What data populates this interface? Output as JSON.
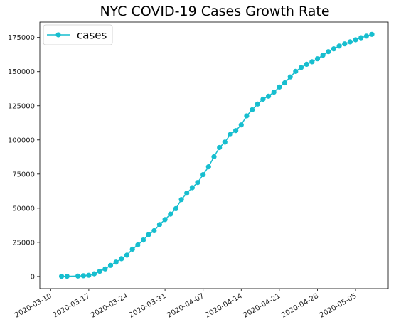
{
  "chart_data": {
    "type": "line",
    "title": "NYC COVID-19 Cases Growth Rate",
    "xlabel": "",
    "ylabel": "",
    "x_start": "2020-03-10",
    "series": [
      {
        "name": "cases",
        "color": "#17becf",
        "marker": "circle",
        "points": [
          [
            "2020-03-12",
            100
          ],
          [
            "2020-03-13",
            150
          ],
          [
            "2020-03-15",
            300
          ],
          [
            "2020-03-16",
            500
          ],
          [
            "2020-03-17",
            900
          ],
          [
            "2020-03-18",
            2000
          ],
          [
            "2020-03-19",
            3800
          ],
          [
            "2020-03-20",
            5500
          ],
          [
            "2020-03-21",
            8100
          ],
          [
            "2020-03-22",
            10500
          ],
          [
            "2020-03-23",
            13000
          ],
          [
            "2020-03-24",
            15600
          ],
          [
            "2020-03-25",
            20000
          ],
          [
            "2020-03-26",
            23100
          ],
          [
            "2020-03-27",
            26700
          ],
          [
            "2020-03-28",
            30700
          ],
          [
            "2020-03-29",
            33500
          ],
          [
            "2020-03-30",
            38000
          ],
          [
            "2020-03-31",
            41700
          ],
          [
            "2020-04-01",
            45700
          ],
          [
            "2020-04-02",
            49700
          ],
          [
            "2020-04-03",
            56300
          ],
          [
            "2020-04-04",
            61000
          ],
          [
            "2020-04-05",
            65000
          ],
          [
            "2020-04-06",
            68800
          ],
          [
            "2020-04-07",
            74600
          ],
          [
            "2020-04-08",
            80300
          ],
          [
            "2020-04-09",
            87700
          ],
          [
            "2020-04-10",
            94400
          ],
          [
            "2020-04-11",
            98400
          ],
          [
            "2020-04-12",
            104000
          ],
          [
            "2020-04-13",
            106800
          ],
          [
            "2020-04-14",
            111000
          ],
          [
            "2020-04-15",
            117600
          ],
          [
            "2020-04-16",
            122000
          ],
          [
            "2020-04-17",
            126300
          ],
          [
            "2020-04-18",
            129800
          ],
          [
            "2020-04-19",
            132000
          ],
          [
            "2020-04-20",
            135000
          ],
          [
            "2020-04-21",
            138700
          ],
          [
            "2020-04-22",
            141800
          ],
          [
            "2020-04-23",
            146100
          ],
          [
            "2020-04-24",
            150200
          ],
          [
            "2020-04-25",
            153000
          ],
          [
            "2020-04-26",
            155400
          ],
          [
            "2020-04-27",
            157200
          ],
          [
            "2020-04-28",
            159400
          ],
          [
            "2020-04-29",
            162000
          ],
          [
            "2020-04-30",
            164600
          ],
          [
            "2020-05-01",
            166700
          ],
          [
            "2020-05-02",
            168700
          ],
          [
            "2020-05-03",
            170300
          ],
          [
            "2020-05-04",
            171800
          ],
          [
            "2020-05-05",
            173300
          ],
          [
            "2020-05-06",
            174800
          ],
          [
            "2020-05-07",
            176000
          ],
          [
            "2020-05-08",
            177300
          ]
        ]
      }
    ],
    "x_ticks": [
      "2020-03-10",
      "2020-03-17",
      "2020-03-24",
      "2020-03-31",
      "2020-04-07",
      "2020-04-14",
      "2020-04-21",
      "2020-04-28",
      "2020-05-05"
    ],
    "y_ticks": [
      0,
      25000,
      50000,
      75000,
      100000,
      125000,
      150000,
      175000
    ],
    "x_range": [
      "2020-03-08",
      "2020-05-11"
    ],
    "ylim": [
      -8900,
      186300
    ],
    "grid": false,
    "legend_position": "top-left"
  }
}
